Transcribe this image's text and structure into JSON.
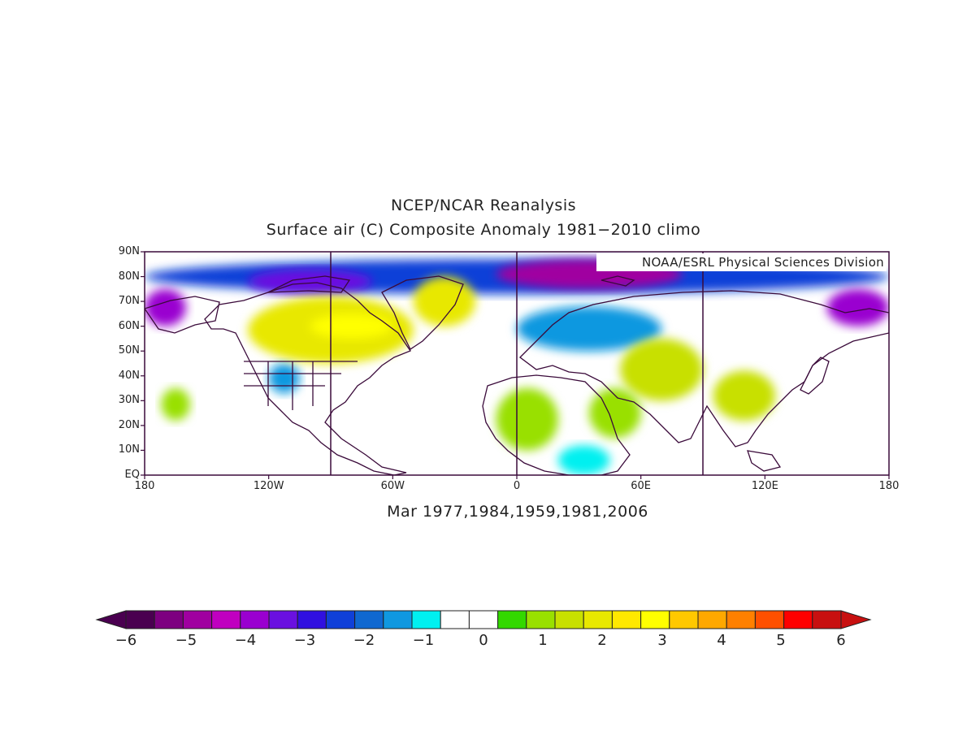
{
  "title": "NCEP/NCAR Reanalysis",
  "subtitle": "Surface air (C) Composite Anomaly 1981−2010 climo",
  "credit": "NOAA/ESRL Physical Sciences Division",
  "bottom_label": "Mar 1977,1984,1959,1981,2006",
  "map": {
    "projection": "cylindrical equidistant",
    "lon_range": [
      -180,
      180
    ],
    "lat_range": [
      0,
      90
    ],
    "lat_ticks": [
      "90N",
      "80N",
      "70N",
      "60N",
      "50N",
      "40N",
      "30N",
      "20N",
      "10N",
      "EQ"
    ],
    "lon_ticks": [
      "180",
      "120W",
      "60W",
      "0",
      "60E",
      "120E",
      "180"
    ],
    "meridian_lines_deg": [
      -90,
      0,
      90
    ],
    "border_color": "#3a0a3a"
  },
  "colorbar": {
    "labels": [
      "−6",
      "−5",
      "−4",
      "−3",
      "−2",
      "−1",
      "0",
      "1",
      "2",
      "3",
      "4",
      "5",
      "6"
    ],
    "colors": [
      "#4a0050",
      "#7d0080",
      "#a000a0",
      "#c000c0",
      "#9a00d0",
      "#6a10e0",
      "#3010e0",
      "#1040d8",
      "#1068d0",
      "#1098e0",
      "#00f0f0",
      "#ffffff",
      "#ffffff",
      "#33d800",
      "#99e000",
      "#c8e000",
      "#e8e800",
      "#ffe800",
      "#ffff00",
      "#ffc800",
      "#ffa800",
      "#ff8000",
      "#ff5000",
      "#ff0000",
      "#c81010"
    ],
    "extend_low_color": "#4a0050",
    "extend_high_color": "#c81010"
  },
  "anomaly_regions": [
    {
      "name": "arctic-cold-band",
      "lon": [
        -180,
        180
      ],
      "lat": [
        73,
        87
      ],
      "value": -2.5
    },
    {
      "name": "siberia-arctic-cold",
      "lon": [
        -10,
        80
      ],
      "lat": [
        75,
        87
      ],
      "value": -5
    },
    {
      "name": "bering-cold",
      "lon": [
        150,
        180
      ],
      "lat": [
        60,
        75
      ],
      "value": -4
    },
    {
      "name": "alaska-west-cold",
      "lon": [
        -180,
        -160
      ],
      "lat": [
        60,
        75
      ],
      "value": -4
    },
    {
      "name": "canada-arctic-cold",
      "lon": [
        -130,
        -70
      ],
      "lat": [
        73,
        83
      ],
      "value": -3.5
    },
    {
      "name": "europe-cold",
      "lon": [
        0,
        70
      ],
      "lat": [
        50,
        68
      ],
      "value": -1.5
    },
    {
      "name": "us-southwest-cold",
      "lon": [
        -120,
        -105
      ],
      "lat": [
        33,
        45
      ],
      "value": -1.5
    },
    {
      "name": "canada-warm",
      "lon": [
        -130,
        -50
      ],
      "lat": [
        45,
        72
      ],
      "value": 2
    },
    {
      "name": "hudson-warm",
      "lon": [
        -100,
        -60
      ],
      "lat": [
        55,
        65
      ],
      "value": 3
    },
    {
      "name": "greenland-warm",
      "lon": [
        -50,
        -20
      ],
      "lat": [
        60,
        80
      ],
      "value": 2
    },
    {
      "name": "central-asia-warm",
      "lon": [
        50,
        90
      ],
      "lat": [
        30,
        55
      ],
      "value": 1.8
    },
    {
      "name": "china-warm",
      "lon": [
        95,
        125
      ],
      "lat": [
        22,
        42
      ],
      "value": 1.5
    },
    {
      "name": "pacific-warm",
      "lon": [
        -172,
        -158
      ],
      "lat": [
        22,
        35
      ],
      "value": 1
    },
    {
      "name": "sahara-warm",
      "lon": [
        -10,
        20
      ],
      "lat": [
        10,
        35
      ],
      "value": 1
    },
    {
      "name": "arabia-warm",
      "lon": [
        35,
        60
      ],
      "lat": [
        15,
        35
      ],
      "value": 1.2
    },
    {
      "name": "east-africa-cold",
      "lon": [
        20,
        45
      ],
      "lat": [
        0,
        12
      ],
      "value": -1
    }
  ]
}
